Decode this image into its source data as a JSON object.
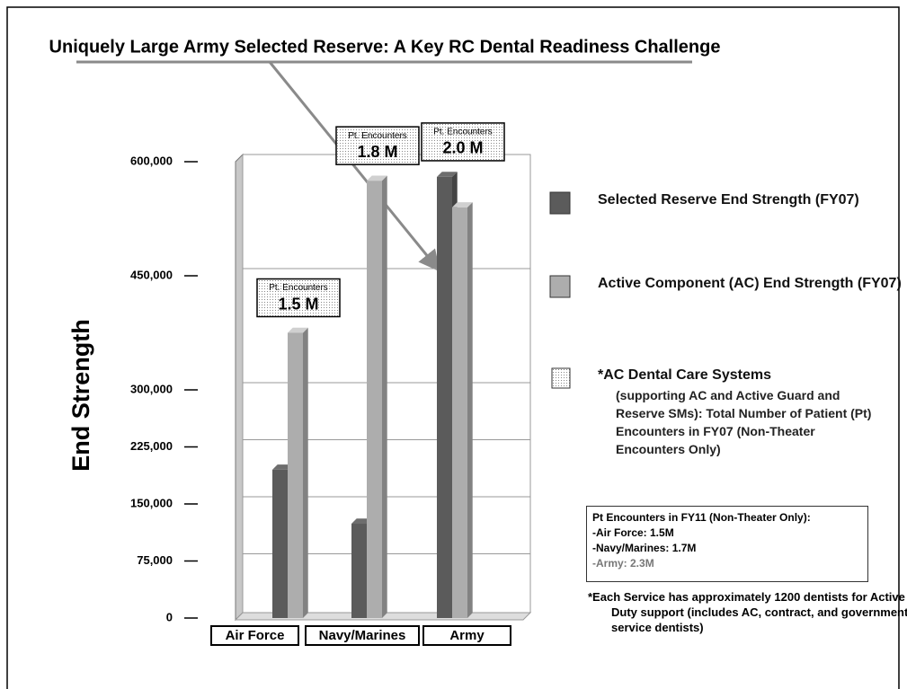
{
  "chart_data": {
    "type": "bar",
    "title": "Uniquely Large Army Selected Reserve:  A Key RC Dental Readiness Challenge",
    "y_label": "End Strength",
    "categories": [
      "Air Force",
      "Navy/Marines",
      "Army"
    ],
    "series": [
      {
        "name": "Selected Reserve End Strength (FY07)",
        "color": "#5b5b5b",
        "values": [
          195000,
          124000,
          580000
        ]
      },
      {
        "name": "Active Component (AC) End Strength (FY07)",
        "color": "#adadad",
        "values": [
          375000,
          575000,
          540000
        ]
      }
    ],
    "ylim": [
      0,
      600000
    ],
    "yticks": [
      0,
      {
        "value": 75000,
        "label": "75,000"
      },
      {
        "value": 150000,
        "label": "150,000"
      },
      {
        "value": 225000,
        "label": "225,000"
      },
      {
        "value": 300000,
        "label": "300,000"
      },
      {
        "value": 450000,
        "label": "450,000"
      },
      {
        "value": 600000,
        "label": "600,000"
      }
    ],
    "annotations": [
      {
        "label": "Pt. Encounters",
        "text": "1.5 M"
      },
      {
        "label": "Pt. Encounters",
        "text": "1.8 M"
      },
      {
        "label": "Pt. Encounters",
        "text": "2.0 M"
      }
    ],
    "legend_extra": {
      "title": "*AC Dental Care Systems",
      "text": "(supporting AC and Active Guard and Reserve SMs):  Total Number of Patient (Pt) Encounters in FY07 (Non-Theater Encounters Only)"
    },
    "note": {
      "title": "Pt Encounters in FY11 (Non-Theater Only):",
      "lines": [
        "-Air Force:  1.5M",
        "-Navy/Marines:  1.7M",
        "-Army:  2.3M"
      ]
    },
    "footnote": "*Each Service has approximately 1200 dentists for Active Duty support (includes AC, contract, and government service dentists)"
  }
}
